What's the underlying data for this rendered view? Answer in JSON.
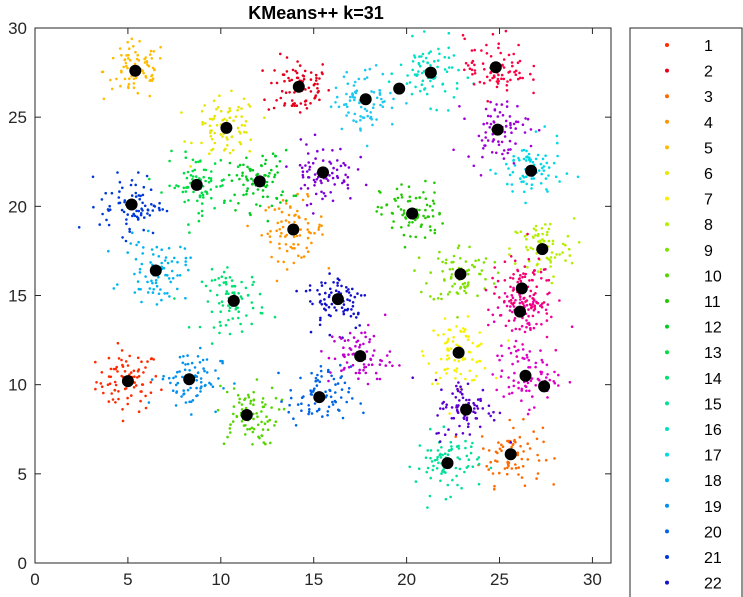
{
  "chart_data": {
    "type": "scatter",
    "title": "KMeans++ k=31",
    "xlabel": "",
    "ylabel": "",
    "xlim": [
      0,
      31
    ],
    "ylim": [
      0,
      30
    ],
    "x_ticks": [
      "0",
      "5",
      "10",
      "15",
      "20",
      "25",
      "30"
    ],
    "y_ticks": [
      "0",
      "5",
      "10",
      "15",
      "20",
      "25",
      "30"
    ],
    "grid": false,
    "legend_position": "right, outside plot",
    "legend_entries": [
      "1",
      "2",
      "3",
      "4",
      "5",
      "6",
      "7",
      "8",
      "9",
      "10",
      "11",
      "12",
      "13",
      "14",
      "15",
      "16",
      "17",
      "18",
      "19",
      "20",
      "21",
      "22"
    ],
    "centroid_color": "#000000",
    "clusters": [
      {
        "center": [
          5.0,
          10.2
        ],
        "color": "#ff2a00"
      },
      {
        "center": [
          14.2,
          26.7
        ],
        "color": "#e6001c"
      },
      {
        "center": [
          25.6,
          6.1
        ],
        "color": "#ff6a00"
      },
      {
        "center": [
          13.9,
          18.7
        ],
        "color": "#ff9400"
      },
      {
        "center": [
          5.4,
          27.6
        ],
        "color": "#ffbb00"
      },
      {
        "center": [
          10.3,
          24.4
        ],
        "color": "#e6e600"
      },
      {
        "center": [
          22.8,
          11.8
        ],
        "color": "#f7f000"
      },
      {
        "center": [
          27.3,
          17.6
        ],
        "color": "#b5ee00"
      },
      {
        "center": [
          22.9,
          16.2
        ],
        "color": "#80e000"
      },
      {
        "center": [
          11.4,
          8.3
        ],
        "color": "#55d400"
      },
      {
        "center": [
          20.3,
          19.6
        ],
        "color": "#22c800"
      },
      {
        "center": [
          12.1,
          21.4
        ],
        "color": "#00cc1e"
      },
      {
        "center": [
          8.7,
          21.2
        ],
        "color": "#00dc44"
      },
      {
        "center": [
          10.7,
          14.7
        ],
        "color": "#00e070"
      },
      {
        "center": [
          22.2,
          5.6
        ],
        "color": "#00e09a"
      },
      {
        "center": [
          21.3,
          27.5
        ],
        "color": "#00e0c6"
      },
      {
        "center": [
          26.7,
          22.0
        ],
        "color": "#00d8e6"
      },
      {
        "center": [
          6.5,
          16.4
        ],
        "color": "#00b4f0"
      },
      {
        "center": [
          8.3,
          10.3
        ],
        "color": "#0090ee"
      },
      {
        "center": [
          15.3,
          9.3
        ],
        "color": "#0064e6"
      },
      {
        "center": [
          5.2,
          20.1
        ],
        "color": "#0038d8"
      },
      {
        "center": [
          16.3,
          14.8
        ],
        "color": "#1010cc"
      },
      {
        "center": [
          23.2,
          8.6
        ],
        "color": "#5a00d2"
      },
      {
        "center": [
          15.5,
          21.9
        ],
        "color": "#7e00d6"
      },
      {
        "center": [
          24.9,
          24.3
        ],
        "color": "#a000d8"
      },
      {
        "center": [
          17.5,
          11.6
        ],
        "color": "#c000d0"
      },
      {
        "center": [
          26.4,
          10.5
        ],
        "color": "#e000c6"
      },
      {
        "center": [
          26.1,
          14.1
        ],
        "color": "#f000a0"
      },
      {
        "center": [
          26.2,
          15.4
        ],
        "color": "#f50070"
      },
      {
        "center": [
          24.8,
          27.8
        ],
        "color": "#ff0040"
      },
      {
        "center": [
          17.8,
          26.0
        ],
        "color": "#1ec8f0"
      }
    ],
    "extra_centroids": [
      [
        19.6,
        26.6
      ],
      [
        27.4,
        9.9
      ]
    ]
  }
}
